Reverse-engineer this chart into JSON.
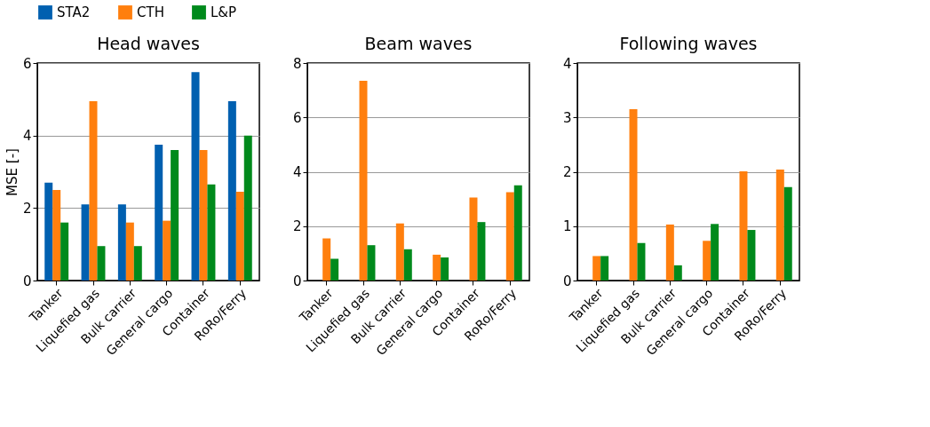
{
  "chart_data": [
    {
      "type": "bar",
      "title": "Head waves",
      "ylabel": "MSE [-]",
      "categories": [
        "Tanker",
        "Liquefied gas",
        "Bulk carrier",
        "General cargo",
        "Container",
        "RoRo/Ferry"
      ],
      "ylim": [
        0,
        6
      ],
      "yticks": [
        0,
        2,
        4,
        6
      ],
      "grid": "y",
      "legend": "top",
      "series": [
        {
          "name": "STA2",
          "color": "#0060b0",
          "values": [
            2.7,
            2.1,
            2.1,
            3.75,
            5.75,
            4.95
          ]
        },
        {
          "name": "CTH",
          "color": "#ff7f0e",
          "values": [
            2.5,
            4.95,
            1.6,
            1.65,
            3.6,
            2.45
          ]
        },
        {
          "name": "L&P",
          "color": "#008a1c",
          "values": [
            1.6,
            0.95,
            0.95,
            3.6,
            2.65,
            4.0
          ]
        }
      ]
    },
    {
      "type": "bar",
      "title": "Beam waves",
      "categories": [
        "Tanker",
        "Liquefied gas",
        "Bulk carrier",
        "General cargo",
        "Container",
        "RoRo/Ferry"
      ],
      "ylim": [
        0,
        8
      ],
      "yticks": [
        0,
        2,
        4,
        6,
        8
      ],
      "grid": "y",
      "legend": "top",
      "series": [
        {
          "name": "STA2",
          "color": "#0060b0",
          "values": [
            null,
            null,
            null,
            null,
            null,
            null
          ]
        },
        {
          "name": "CTH",
          "color": "#ff7f0e",
          "values": [
            1.55,
            7.35,
            2.1,
            0.95,
            3.05,
            3.25
          ]
        },
        {
          "name": "L&P",
          "color": "#008a1c",
          "values": [
            0.8,
            1.3,
            1.15,
            0.85,
            2.15,
            3.5
          ]
        }
      ]
    },
    {
      "type": "bar",
      "title": "Following waves",
      "categories": [
        "Tanker",
        "Liquefied gas",
        "Bulk carrier",
        "General cargo",
        "Container",
        "RoRo/Ferry"
      ],
      "ylim": [
        0,
        4
      ],
      "yticks": [
        0,
        1,
        2,
        3,
        4
      ],
      "grid": "y",
      "legend": "top",
      "series": [
        {
          "name": "STA2",
          "color": "#0060b0",
          "values": [
            null,
            null,
            null,
            null,
            null,
            null
          ]
        },
        {
          "name": "CTH",
          "color": "#ff7f0e",
          "values": [
            0.45,
            3.15,
            1.03,
            0.73,
            2.01,
            2.04
          ]
        },
        {
          "name": "L&P",
          "color": "#008a1c",
          "values": [
            0.45,
            0.69,
            0.28,
            1.04,
            0.93,
            1.72
          ]
        }
      ]
    }
  ]
}
